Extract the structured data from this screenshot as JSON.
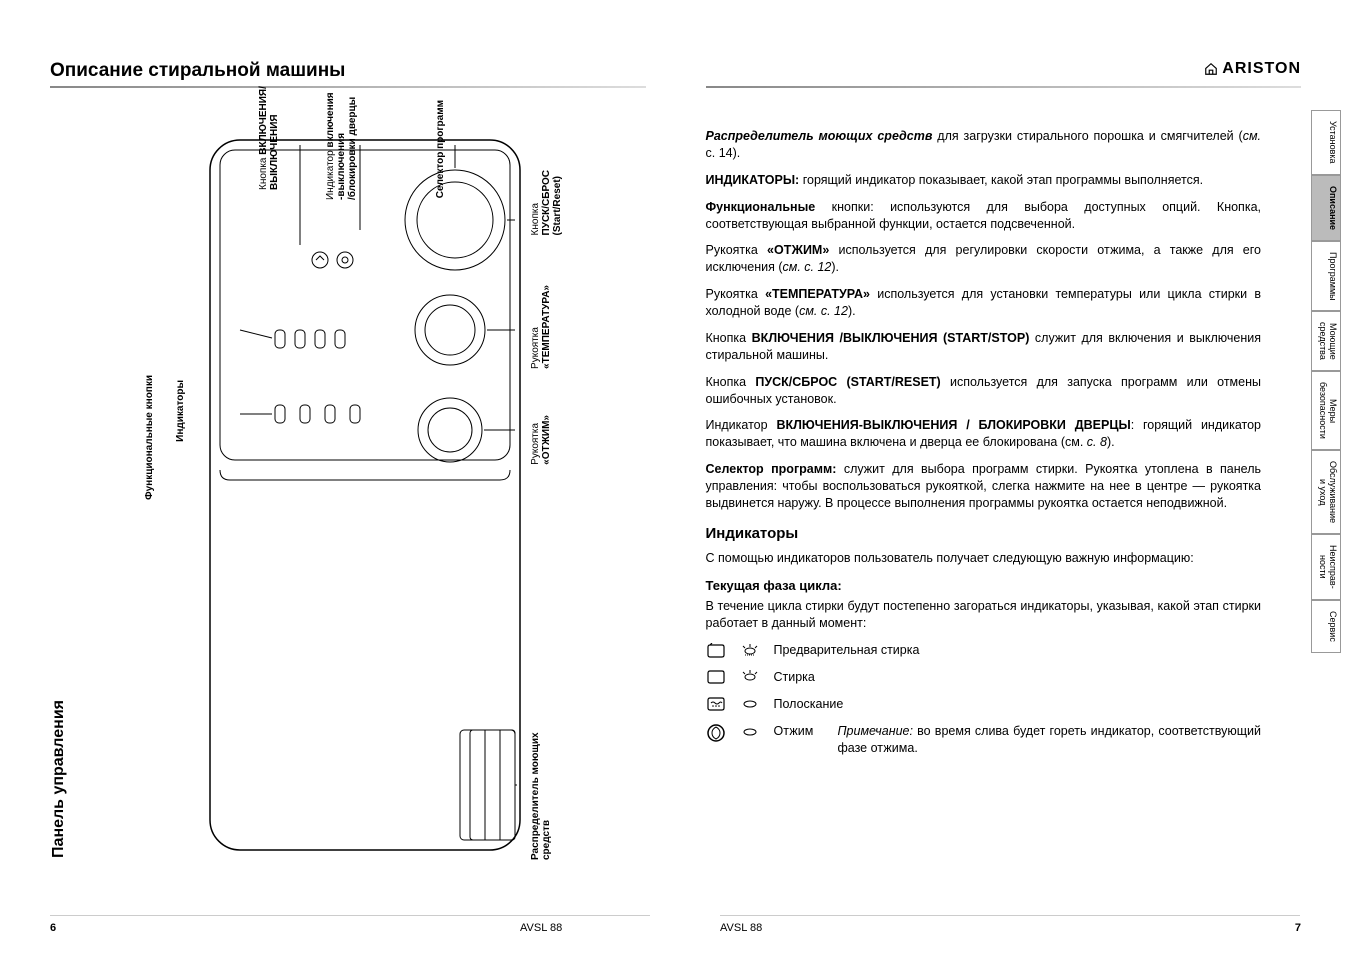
{
  "heading": "Описание стиральной машины",
  "brand": "ARISTON",
  "panel_label": "Панель управления",
  "footer": {
    "model": "AVSL 88",
    "page_left": "6",
    "page_right": "7"
  },
  "diagram_labels": {
    "func_buttons": "Функциональные\nкнопки",
    "on_off_btn": "Кнопка ВКЛЮЧЕНИЯ/\nВЫКЛЮЧЕНИЯ",
    "indicators": "Индикаторы",
    "on_off_lock": "Индикатор включения\n-выключения\n/блокировки дверцы",
    "program_selector": "Селектор\nпрограмм",
    "start_reset": "Кнопка\nПУСК/СБРОС\n(Start/Reset)",
    "temperature": "Рукоятка\n«ТЕМПЕРАТУРА»",
    "spin": "Рукоятка\n«ОТЖИМ»",
    "detergent": "Распределитель\nмоющих средств"
  },
  "right": {
    "p1_lead_bi": "Распределитель моющих средств",
    "p1_rest": " для загрузки стирального порошка и смягчителей (",
    "p1_see": "см.",
    "p1_end": " с. 14).",
    "p2_b": "ИНДИКАТОРЫ:",
    "p2_rest": " горящий индикатор показывает, какой этап программы выполняется.",
    "p3_b": "Функциональные",
    "p3_rest": " кнопки: используются для выбора доступных опций. Кнопка, соответствующая выбранной функции, остается подсвеченной.",
    "p4_pre": "Рукоятка ",
    "p4_b": "«ОТЖИМ»",
    "p4_rest": " используется для регулировки скорости отжима, а также для его исключения (",
    "p4_see": "см. с. 12",
    "p4_end": ").",
    "p5_pre": "Рукоятка ",
    "p5_b": "«ТЕМПЕРАТУРА»",
    "p5_rest": " используется для установки температуры или цикла стирки в холодной воде (",
    "p5_see": "см. с. 12",
    "p5_end": ").",
    "p6_pre": "Кнопка ",
    "p6_b": "ВКЛЮЧЕНИЯ /ВЫКЛЮЧЕНИЯ (START/STOP)",
    "p6_rest": " служит для включения и выключения стиральной машины.",
    "p7_pre": "Кнопка ",
    "p7_b": "ПУСК/СБРОС (START/RESET)",
    "p7_rest": " используется для запуска программ или отмены ошибочных установок.",
    "p8_pre": "Индикатор ",
    "p8_b": "ВКЛЮЧЕНИЯ-ВЫКЛЮЧЕНИЯ / БЛОКИРОВКИ ДВЕРЦЫ",
    "p8_rest": ": горящий индикатор показывает, что машина включена и дверца ее блокирована (см. ",
    "p8_see": "с. 8",
    "p8_end": ").",
    "p9_b": "Селектор программ:",
    "p9_rest": " служит для выбора программ стирки. Рукоятка утоплена в панель управления: чтобы воспользоваться рукояткой, слегка нажмите на нее в центре — рукоятка выдвинется наружу.  В процессе выполнения программы рукоятка остается неподвижной.",
    "ind_head": "Индикаторы",
    "ind_intro": "С помощью индикаторов пользователь получает следующую важную информацию:",
    "phase_head": "Текущая фаза цикла:",
    "phase_intro": "В течение цикла стирки будут постепенно загораться индикаторы, указывая, какой этап стирки работает в данный момент:",
    "phase1": "Предварительная стирка",
    "phase2": "Стирка",
    "phase3": "Полоскание",
    "phase4": "Отжим",
    "note_lead": "Примечание:",
    "note_rest": " во время слива будет гореть индикатор, соответствующий фазе отжима."
  },
  "tabs": [
    "Установка",
    "Описание",
    "Программы",
    "Моющие\nсредства",
    "Меры\nбезопасности",
    "Обслуживание\nи уход",
    "Неисправ-\nности",
    "Сервис"
  ],
  "active_tab_index": 1,
  "colors": {
    "rule": "#888888",
    "text": "#000000",
    "tab_active_bg": "#bbbbbb"
  }
}
